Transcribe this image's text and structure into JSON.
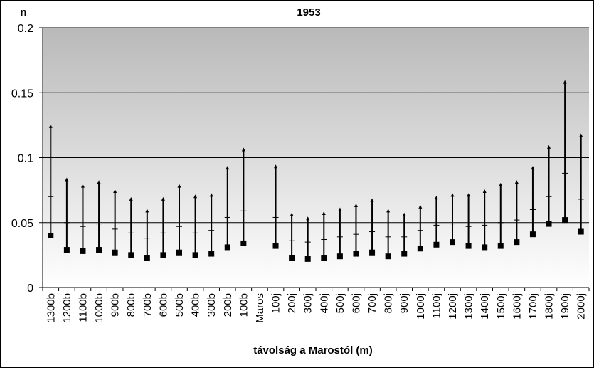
{
  "chart_data": {
    "type": "high-low-close",
    "title": "1953",
    "ylabel": "n",
    "xlabel": "távolság a Marostól (m)",
    "ylim": [
      0,
      0.2
    ],
    "yticks": [
      "0",
      "0.05",
      "0.1",
      "0.15",
      "0.2"
    ],
    "grid": true,
    "categories": [
      "1300b",
      "1200b",
      "1100b",
      "1000b",
      "900b",
      "800b",
      "700b",
      "600b",
      "500b",
      "400b",
      "300b",
      "200b",
      "100b",
      "Maros",
      "100j",
      "200j",
      "300j",
      "400j",
      "500j",
      "600j",
      "700j",
      "800j",
      "900j",
      "1000j",
      "1100j",
      "1200j",
      "1300j",
      "1400j",
      "1500j",
      "1600j",
      "1700j",
      "1800j",
      "1900j",
      "2000j"
    ],
    "series": [
      {
        "values_high": [
          0.124,
          0.083,
          0.078,
          0.081,
          0.074,
          0.068,
          0.059,
          0.068,
          0.078,
          0.07,
          0.071,
          0.092,
          0.106,
          null,
          0.093,
          0.056,
          0.053,
          0.057,
          0.06,
          0.063,
          0.067,
          0.059,
          0.056,
          0.062,
          0.069,
          0.071,
          0.071,
          0.074,
          0.079,
          0.081,
          0.092,
          0.108,
          0.158,
          0.117
        ]
      },
      {
        "values_low": [
          0.04,
          0.029,
          0.028,
          0.029,
          0.027,
          0.025,
          0.023,
          0.025,
          0.027,
          0.025,
          0.026,
          0.031,
          0.034,
          null,
          0.032,
          0.023,
          0.022,
          0.023,
          0.024,
          0.026,
          0.027,
          0.024,
          0.026,
          0.03,
          0.033,
          0.035,
          0.032,
          0.031,
          0.032,
          0.035,
          0.041,
          0.049,
          0.052,
          0.043
        ]
      },
      {
        "values_mid": [
          0.07,
          0.05,
          0.047,
          0.049,
          0.045,
          0.042,
          0.038,
          0.042,
          0.047,
          0.042,
          0.044,
          0.054,
          0.059,
          null,
          0.054,
          0.036,
          0.035,
          0.037,
          0.039,
          0.041,
          0.043,
          0.039,
          0.039,
          0.044,
          0.048,
          0.049,
          0.047,
          0.048,
          0.05,
          0.052,
          0.06,
          0.07,
          0.088,
          0.068
        ]
      }
    ]
  }
}
